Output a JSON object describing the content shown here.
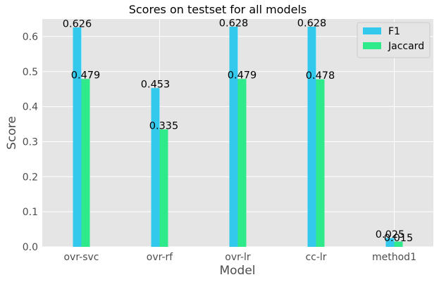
{
  "chart_data": {
    "type": "bar",
    "title": "Scores on testset for all models",
    "xlabel": "Model",
    "ylabel": "Score",
    "categories": [
      "ovr-svc",
      "ovr-rf",
      "ovr-lr",
      "cc-lr",
      "method1"
    ],
    "series": [
      {
        "name": "F1",
        "values": [
          0.626,
          0.453,
          0.628,
          0.628,
          0.025
        ],
        "labels": [
          "0.626",
          "0.453",
          "0.628",
          "0.628",
          "0.025"
        ],
        "color": "#33c9ec"
      },
      {
        "name": "Jaccard",
        "values": [
          0.479,
          0.335,
          0.479,
          0.478,
          0.015
        ],
        "labels": [
          "0.479",
          "0.335",
          "0.479",
          "0.478",
          "0.015"
        ],
        "color": "#2eea8a"
      }
    ],
    "ylim": [
      0,
      0.65
    ],
    "yticks": [
      0.0,
      0.1,
      0.2,
      0.3,
      0.4,
      0.5,
      0.6
    ],
    "ytick_labels": [
      "0.0",
      "0.1",
      "0.2",
      "0.3",
      "0.4",
      "0.5",
      "0.6"
    ],
    "grid": true,
    "legend_position": "top-right",
    "background_color": "#e5e5e5",
    "grid_color": "#ffffff"
  }
}
